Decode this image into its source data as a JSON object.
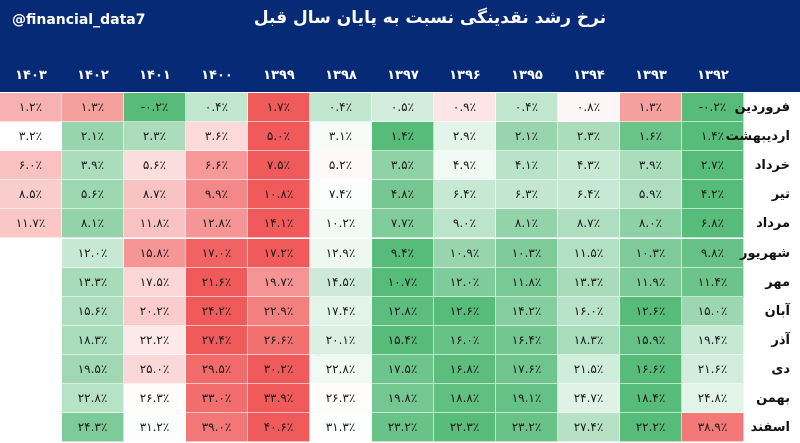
{
  "header": {
    "handle": "@financial_data7",
    "title": "نرخ رشد نقدینگی نسبت به پایان سال قبل"
  },
  "colors": {
    "header_bg": "#062a75",
    "positive_green": "#57bb7a",
    "negative_red": "#f05a5a"
  },
  "chart_data": {
    "type": "heatmap",
    "title": "نرخ رشد نقدینگی نسبت به پایان سال قبل",
    "x": [
      "۱۴۰۳",
      "۱۴۰۲",
      "۱۴۰۱",
      "۱۴۰۰",
      "۱۳۹۹",
      "۱۳۹۸",
      "۱۳۹۷",
      "۱۳۹۶",
      "۱۳۹۵",
      "۱۳۹۴",
      "۱۳۹۳",
      "۱۳۹۲"
    ],
    "y": [
      "فروردین",
      "اردیبهشت",
      "خرداد",
      "تیر",
      "مرداد",
      "شهریور",
      "مهر",
      "آبان",
      "آذر",
      "دی",
      "بهمن",
      "اسفند"
    ],
    "cells": [
      [
        "۱.۲٪",
        "۱.۳٪",
        "-۰.۲٪",
        "۰.۴٪",
        "۱.۷٪",
        "۰.۴٪",
        "۰.۵٪",
        "۰.۹٪",
        "۰.۴٪",
        "۰.۸٪",
        "۱.۳٪",
        "-۰.۲٪"
      ],
      [
        "۳.۲٪",
        "۲.۱٪",
        "۲.۳٪",
        "۳.۶٪",
        "۵.۰٪",
        "۳.۱٪",
        "۱.۴٪",
        "۲.۹٪",
        "۲.۱٪",
        "۲.۳٪",
        "۱.۶٪",
        "۱.۴٪"
      ],
      [
        "۶.۰٪",
        "۳.۹٪",
        "۵.۶٪",
        "۶.۶٪",
        "۷.۵٪",
        "۵.۲٪",
        "۳.۵٪",
        "۴.۹٪",
        "۴.۱٪",
        "۴.۳٪",
        "۳.۹٪",
        "۲.۷٪"
      ],
      [
        "۸.۵٪",
        "۵.۶٪",
        "۸.۷٪",
        "۹.۹٪",
        "۱۰.۸٪",
        "۷.۴٪",
        "۴.۸٪",
        "۶.۴٪",
        "۶.۳٪",
        "۶.۴٪",
        "۵.۹٪",
        "۴.۲٪"
      ],
      [
        "۱۱.۷٪",
        "۸.۱٪",
        "۱۱.۸٪",
        "۱۲.۸٪",
        "۱۴.۱٪",
        "۱۰.۲٪",
        "۷.۷٪",
        "۹.۰٪",
        "۸.۱٪",
        "۸.۷٪",
        "۸.۰٪",
        "۶.۸٪"
      ],
      [
        "",
        "۱۲.۰٪",
        "۱۵.۸٪",
        "۱۷.۰٪",
        "۱۷.۲٪",
        "۱۲.۹٪",
        "۹.۴٪",
        "۱۰.۹٪",
        "۱۰.۳٪",
        "۱۱.۵٪",
        "۱۰.۳٪",
        "۹.۸٪"
      ],
      [
        "",
        "۱۳.۳٪",
        "۱۷.۵٪",
        "۲۱.۶٪",
        "۱۹.۷٪",
        "۱۴.۵٪",
        "۱۰.۷٪",
        "۱۲.۰٪",
        "۱۱.۸٪",
        "۱۳.۳٪",
        "۱۱.۹٪",
        "۱۱.۴٪"
      ],
      [
        "",
        "۱۵.۶٪",
        "۲۰.۲٪",
        "۲۴.۲٪",
        "۲۲.۹٪",
        "۱۷.۴٪",
        "۱۲.۸٪",
        "۱۲.۶٪",
        "۱۴.۲٪",
        "۱۶.۰٪",
        "۱۲.۶٪",
        "۱۵.۰٪"
      ],
      [
        "",
        "۱۸.۳٪",
        "۲۲.۲٪",
        "۲۷.۴٪",
        "۲۶.۶٪",
        "۲۰.۱٪",
        "۱۵.۴٪",
        "۱۶.۰٪",
        "۱۶.۴٪",
        "۱۸.۳٪",
        "۱۵.۹٪",
        "۱۹.۴٪"
      ],
      [
        "",
        "۱۹.۵٪",
        "۲۵.۰٪",
        "۲۹.۵٪",
        "۳۰.۲٪",
        "۲۲.۸٪",
        "۱۷.۵٪",
        "۱۶.۸٪",
        "۱۷.۶٪",
        "۲۱.۵٪",
        "۱۶.۶٪",
        "۲۱.۶٪"
      ],
      [
        "",
        "۲۲.۸٪",
        "۲۶.۳٪",
        "۳۳.۰٪",
        "۳۳.۹٪",
        "۲۶.۳٪",
        "۱۹.۸٪",
        "۱۸.۸٪",
        "۱۹.۱٪",
        "۲۴.۷٪",
        "۱۸.۴٪",
        "۲۴.۸٪"
      ],
      [
        "",
        "۲۴.۳٪",
        "۳۱.۲٪",
        "۳۹.۰٪",
        "۴۰.۶٪",
        "۳۱.۳٪",
        "۲۳.۲٪",
        "۲۲.۳٪",
        "۲۳.۲٪",
        "۲۷.۴٪",
        "۲۲.۲٪",
        "۳۸.۹٪"
      ]
    ]
  }
}
